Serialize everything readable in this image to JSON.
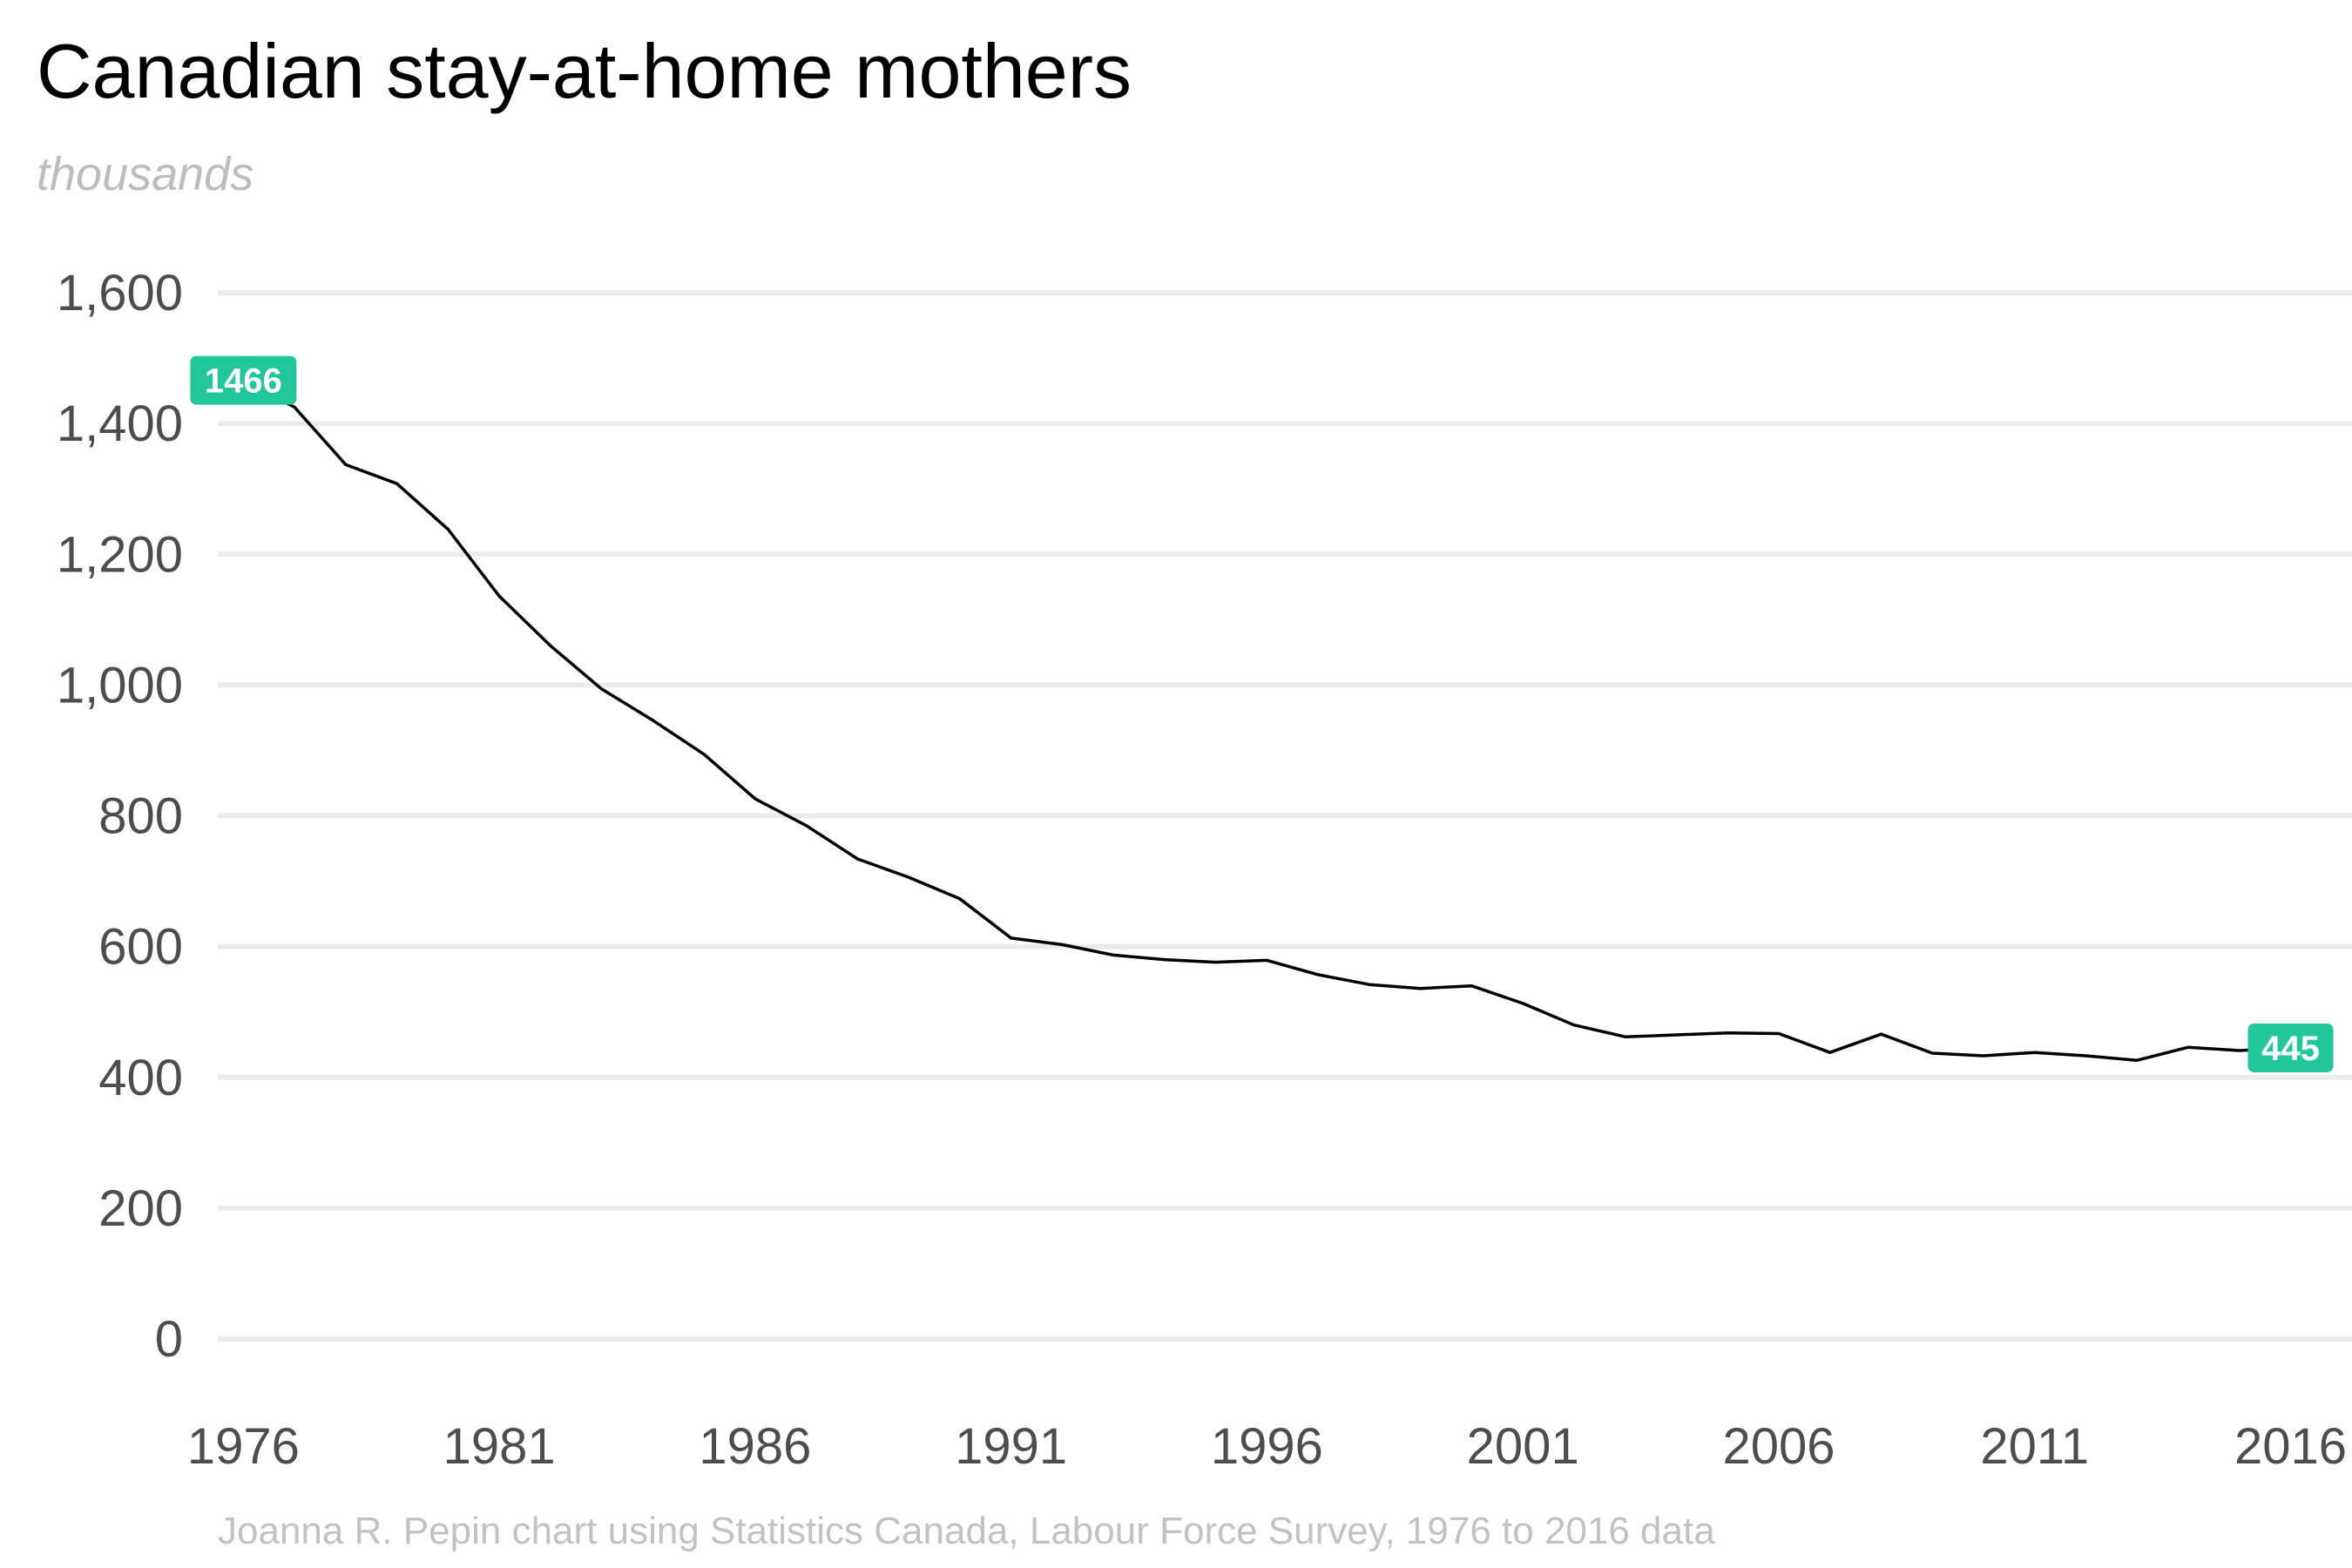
{
  "chart_data": {
    "type": "line",
    "title": "Canadian stay-at-home mothers",
    "subtitle": "thousands",
    "caption": "Joanna R. Pepin chart using Statistics Canada, Labour Force Survey, 1976 to 2016 data",
    "xlabel": "",
    "ylabel": "",
    "xlim": [
      1975.5,
      2017.2
    ],
    "ylim": [
      0,
      1600
    ],
    "x_ticks": [
      1976,
      1981,
      1986,
      1991,
      1996,
      2001,
      2006,
      2011,
      2016
    ],
    "y_ticks": [
      0,
      200,
      400,
      600,
      800,
      1000,
      1200,
      1400,
      1600
    ],
    "y_tick_labels": [
      "0",
      "200",
      "400",
      "600",
      "800",
      "1,000",
      "1,200",
      "1,400",
      "1,600"
    ],
    "grid": "horizontal",
    "legend": "none",
    "line_color": "#000000",
    "label_color": "#22c69b",
    "series": [
      {
        "x": [
          1976,
          1977,
          1978,
          1979,
          1980,
          1981,
          1982,
          1983,
          1984,
          1985,
          1986,
          1987,
          1988,
          1989,
          1990,
          1991,
          1992,
          1993,
          1994,
          1995,
          1996,
          1997,
          1998,
          1999,
          2000,
          2001,
          2002,
          2003,
          2004,
          2005,
          2006,
          2007,
          2008,
          2009,
          2010,
          2011,
          2012,
          2013,
          2014,
          2015,
          2016
        ],
        "values": [
          1466,
          1425,
          1337,
          1308,
          1238,
          1136,
          1060,
          994,
          946,
          894,
          826,
          785,
          734,
          706,
          673,
          613,
          603,
          587,
          580,
          576,
          579,
          557,
          542,
          536,
          540,
          513,
          480,
          462,
          465,
          468,
          467,
          438,
          466,
          437,
          433,
          438,
          433,
          426,
          446,
          441,
          445
        ]
      }
    ],
    "annotations": [
      {
        "x": 1976,
        "y": 1466,
        "text": "1466"
      },
      {
        "x": 2016,
        "y": 445,
        "text": "445"
      }
    ]
  }
}
